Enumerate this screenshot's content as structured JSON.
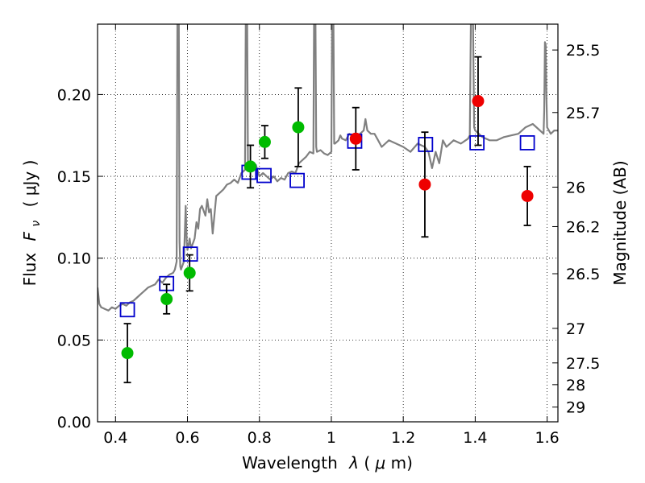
{
  "chart_data": {
    "type": "scatter",
    "title": "",
    "xlabel_text": "Wavelength",
    "xlabel_symbol": "λ",
    "xlabel_unit_open": " (",
    "xlabel_unit_mu": "μ",
    "xlabel_unit_rest": "m)",
    "ylabel_text": "Flux",
    "ylabel_symbol": "F",
    "ylabel_subscript": "ν",
    "ylabel_unit": "( μJy )",
    "y2label": "Magnitude (AB)",
    "xlim": [
      0.35,
      1.63
    ],
    "ylim": [
      0.0,
      0.243
    ],
    "grid": true,
    "x_ticks": [
      0.4,
      0.6,
      0.8,
      1.0,
      1.2,
      1.4,
      1.6
    ],
    "x_tick_labels": [
      "0.4",
      "0.6",
      "0.8",
      "1",
      "1.2",
      "1.4",
      "1.6"
    ],
    "y_ticks": [
      0.0,
      0.05,
      0.1,
      0.15,
      0.2
    ],
    "y_tick_labels": [
      "0.00",
      "0.05",
      "0.10",
      "0.15",
      "0.20"
    ],
    "y2_ticks": [
      {
        "label": "25.5",
        "flux": 0.2272
      },
      {
        "label": "25.7",
        "flux": 0.189
      },
      {
        "label": "26",
        "flux": 0.1434
      },
      {
        "label": "26.2",
        "flux": 0.1193
      },
      {
        "label": "26.5",
        "flux": 0.0905
      },
      {
        "label": "27",
        "flux": 0.0571
      },
      {
        "label": "27.5",
        "flux": 0.036
      },
      {
        "label": "28",
        "flux": 0.0227
      },
      {
        "label": "29",
        "flux": 0.009
      }
    ],
    "series": [
      {
        "name": "model_spectrum",
        "kind": "line",
        "color": "#808080",
        "x": [
          0.35,
          0.355,
          0.36,
          0.37,
          0.38,
          0.39,
          0.4,
          0.41,
          0.42,
          0.43,
          0.44,
          0.45,
          0.46,
          0.47,
          0.48,
          0.49,
          0.5,
          0.51,
          0.52,
          0.53,
          0.54,
          0.55,
          0.56,
          0.565,
          0.57,
          0.572,
          0.574,
          0.576,
          0.578,
          0.58,
          0.582,
          0.59,
          0.595,
          0.598,
          0.6,
          0.603,
          0.606,
          0.61,
          0.62,
          0.625,
          0.63,
          0.635,
          0.64,
          0.65,
          0.655,
          0.66,
          0.665,
          0.67,
          0.68,
          0.69,
          0.7,
          0.71,
          0.72,
          0.73,
          0.74,
          0.75,
          0.76,
          0.762,
          0.764,
          0.766,
          0.768,
          0.77,
          0.78,
          0.79,
          0.8,
          0.81,
          0.82,
          0.83,
          0.84,
          0.85,
          0.86,
          0.87,
          0.88,
          0.89,
          0.9,
          0.91,
          0.92,
          0.93,
          0.94,
          0.95,
          0.952,
          0.954,
          0.956,
          0.958,
          0.96,
          0.97,
          0.98,
          0.99,
          1.0,
          1.002,
          1.004,
          1.006,
          1.008,
          1.01,
          1.02,
          1.025,
          1.03,
          1.04,
          1.05,
          1.06,
          1.08,
          1.09,
          1.095,
          1.1,
          1.11,
          1.12,
          1.13,
          1.14,
          1.16,
          1.18,
          1.2,
          1.22,
          1.24,
          1.26,
          1.27,
          1.28,
          1.29,
          1.3,
          1.31,
          1.32,
          1.34,
          1.36,
          1.38,
          1.385,
          1.388,
          1.391,
          1.394,
          1.397,
          1.4,
          1.42,
          1.44,
          1.46,
          1.48,
          1.5,
          1.52,
          1.54,
          1.56,
          1.58,
          1.59,
          1.592,
          1.594,
          1.596,
          1.598,
          1.6,
          1.61,
          1.62,
          1.63
        ],
        "y": [
          0.082,
          0.072,
          0.07,
          0.069,
          0.068,
          0.07,
          0.069,
          0.071,
          0.072,
          0.071,
          0.073,
          0.074,
          0.076,
          0.078,
          0.08,
          0.082,
          0.083,
          0.084,
          0.087,
          0.085,
          0.088,
          0.09,
          0.091,
          0.093,
          0.098,
          0.243,
          0.243,
          0.243,
          0.11,
          0.095,
          0.093,
          0.098,
          0.132,
          0.11,
          0.105,
          0.108,
          0.112,
          0.106,
          0.112,
          0.122,
          0.118,
          0.13,
          0.132,
          0.126,
          0.136,
          0.128,
          0.13,
          0.115,
          0.138,
          0.14,
          0.142,
          0.145,
          0.146,
          0.148,
          0.146,
          0.152,
          0.154,
          0.243,
          0.243,
          0.243,
          0.16,
          0.155,
          0.155,
          0.157,
          0.15,
          0.152,
          0.15,
          0.148,
          0.15,
          0.147,
          0.149,
          0.148,
          0.152,
          0.153,
          0.152,
          0.158,
          0.16,
          0.162,
          0.165,
          0.164,
          0.243,
          0.243,
          0.243,
          0.168,
          0.165,
          0.166,
          0.164,
          0.163,
          0.165,
          0.243,
          0.243,
          0.243,
          0.17,
          0.17,
          0.172,
          0.175,
          0.173,
          0.172,
          0.176,
          0.174,
          0.176,
          0.178,
          0.185,
          0.178,
          0.176,
          0.176,
          0.172,
          0.168,
          0.172,
          0.17,
          0.168,
          0.165,
          0.17,
          0.168,
          0.165,
          0.155,
          0.165,
          0.158,
          0.172,
          0.168,
          0.172,
          0.17,
          0.173,
          0.175,
          0.243,
          0.243,
          0.243,
          0.18,
          0.178,
          0.174,
          0.172,
          0.172,
          0.174,
          0.175,
          0.176,
          0.18,
          0.182,
          0.178,
          0.176,
          0.19,
          0.232,
          0.23,
          0.2,
          0.18,
          0.176,
          0.178,
          0.178
        ]
      },
      {
        "name": "model_photometry",
        "kind": "open_square",
        "color": "#0000cc",
        "x": [
          0.433,
          0.542,
          0.608,
          0.771,
          0.813,
          0.905,
          1.065,
          1.262,
          1.405,
          1.545
        ],
        "y": [
          0.0685,
          0.0845,
          0.1025,
          0.1525,
          0.1505,
          0.1475,
          0.1715,
          0.1695,
          0.1705,
          0.1705
        ]
      },
      {
        "name": "observed_optical",
        "kind": "filled_circle",
        "color": "#00bb00",
        "x": [
          0.433,
          0.542,
          0.606,
          0.775,
          0.815,
          0.908
        ],
        "y": [
          0.042,
          0.075,
          0.091,
          0.156,
          0.171,
          0.18
        ],
        "err": [
          0.018,
          0.009,
          0.011,
          0.013,
          0.01,
          0.024
        ]
      },
      {
        "name": "observed_nir",
        "kind": "filled_circle",
        "color": "#ee0000",
        "x": [
          1.068,
          1.26,
          1.408,
          1.545
        ],
        "y": [
          0.173,
          0.145,
          0.196,
          0.138
        ],
        "err": [
          0.019,
          0.032,
          0.027,
          0.018
        ]
      }
    ]
  }
}
